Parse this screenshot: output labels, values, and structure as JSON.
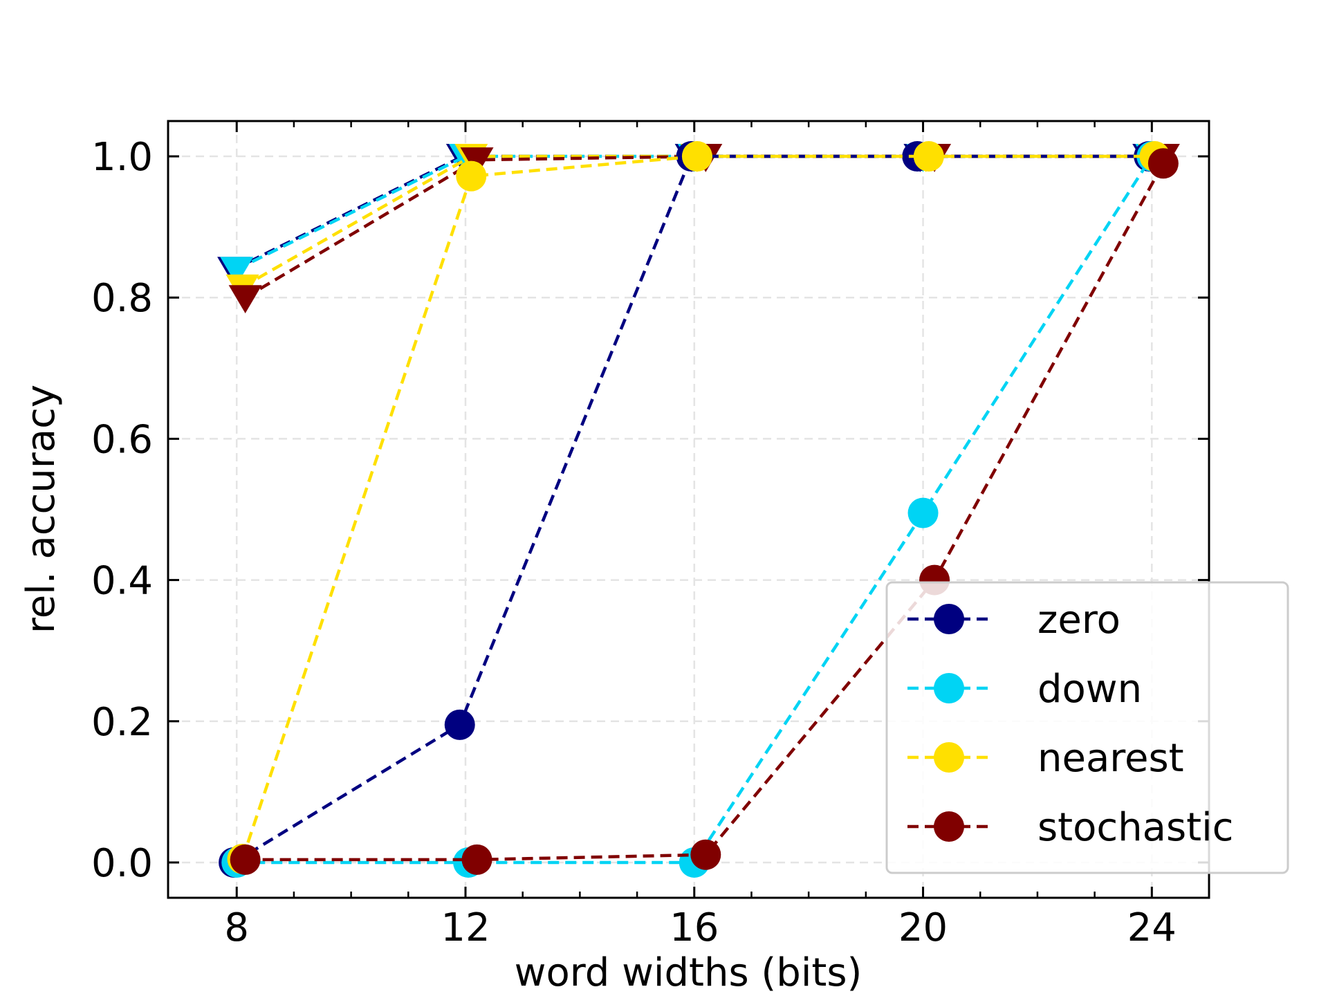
{
  "chart_data": {
    "type": "line",
    "title": "",
    "xlabel": "word widths (bits)",
    "ylabel": "rel. accuracy",
    "xlim": [
      6.8,
      25.0
    ],
    "ylim": [
      -0.05,
      1.05
    ],
    "xticks": [
      8,
      12,
      16,
      20,
      24
    ],
    "xtick_labels": [
      "8",
      "12",
      "16",
      "20",
      "24"
    ],
    "yticks": [
      0.0,
      0.2,
      0.4,
      0.6,
      0.8,
      1.0
    ],
    "ytick_labels": [
      "0.0",
      "0.2",
      "0.4",
      "0.6",
      "0.8",
      "1.0"
    ],
    "x_minor_ticks": [
      9,
      10,
      11,
      13,
      14,
      15,
      17,
      18,
      19,
      21,
      22,
      23
    ],
    "grid": true,
    "legend_position": "bottom-right",
    "series": [
      {
        "name": "zero",
        "color": "#000080",
        "marker": "circle",
        "x": [
          7.95,
          11.9,
          15.95,
          19.9,
          23.95
        ],
        "y": [
          0.0,
          0.195,
          1.0,
          1.0,
          1.0
        ]
      },
      {
        "name": "down",
        "color": "#00d4f4",
        "marker": "circle",
        "x": [
          8.0,
          12.05,
          16.0,
          20.0,
          24.0
        ],
        "y": [
          0.0,
          0.0,
          0.0,
          0.495,
          1.0
        ]
      },
      {
        "name": "nearest",
        "color": "#ffe000",
        "marker": "circle",
        "x": [
          8.1,
          12.1,
          16.05,
          20.1,
          24.05
        ],
        "y": [
          0.005,
          0.972,
          1.0,
          1.0,
          1.0
        ]
      },
      {
        "name": "stochastic",
        "color": "#800000",
        "marker": "circle",
        "x": [
          8.15,
          12.2,
          16.2,
          20.2,
          24.2
        ],
        "y": [
          0.004,
          0.004,
          0.011,
          0.4,
          0.99
        ]
      },
      {
        "color": "#000080",
        "marker": "triangle-down",
        "x": [
          7.95,
          11.95,
          15.95,
          19.95,
          23.95
        ],
        "y": [
          0.84,
          1.0,
          1.0,
          1.0,
          1.0
        ]
      },
      {
        "color": "#00d4f4",
        "marker": "triangle-down",
        "x": [
          8.0,
          12.0,
          16.0,
          20.0,
          24.0
        ],
        "y": [
          0.84,
          1.0,
          1.0,
          1.0,
          1.0
        ]
      },
      {
        "color": "#ffe000",
        "marker": "triangle-down",
        "x": [
          8.1,
          12.1,
          16.05,
          20.05,
          24.05
        ],
        "y": [
          0.815,
          1.0,
          1.0,
          1.0,
          1.0
        ]
      },
      {
        "color": "#800000",
        "marker": "triangle-down",
        "x": [
          8.15,
          12.2,
          16.2,
          20.2,
          24.2
        ],
        "y": [
          0.8,
          0.995,
          1.0,
          1.0,
          1.0
        ]
      }
    ],
    "legend": [
      {
        "label": "zero",
        "color": "#000080"
      },
      {
        "label": "down",
        "color": "#00d4f4"
      },
      {
        "label": "nearest",
        "color": "#ffe000"
      },
      {
        "label": "stochastic",
        "color": "#800000"
      }
    ]
  }
}
